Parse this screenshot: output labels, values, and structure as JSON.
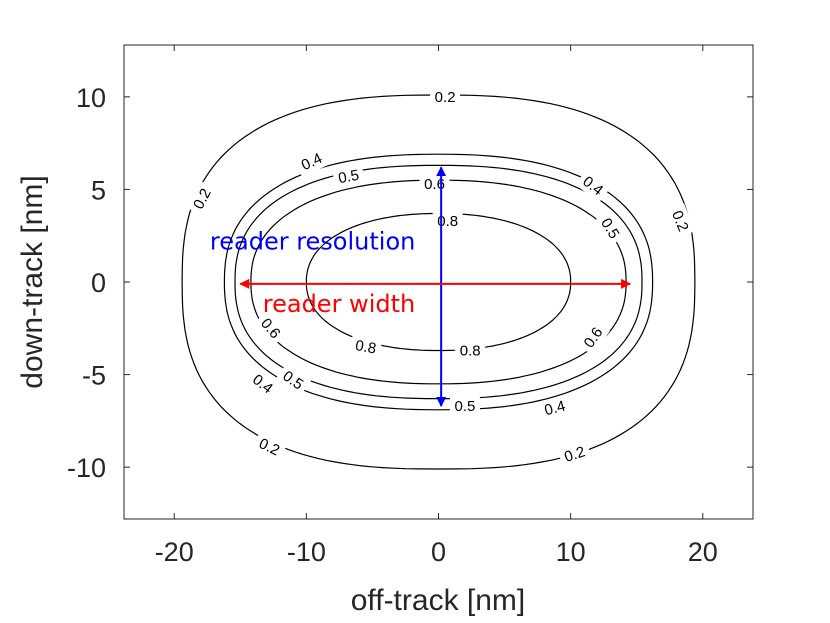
{
  "chart_data": {
    "type": "contour",
    "xlabel": "off-track [nm]",
    "ylabel": "down-track [nm]",
    "xlim": [
      -23.8,
      23.8
    ],
    "ylim": [
      -12.8,
      12.8
    ],
    "xticks": [
      -20,
      -10,
      0,
      10,
      20
    ],
    "xtick_labels": [
      "-20",
      "-10",
      "0",
      "10",
      "20"
    ],
    "yticks": [
      10,
      5,
      0,
      -5,
      -10
    ],
    "ytick_labels": [
      "10",
      "5",
      "0",
      "-5",
      "-10"
    ],
    "grid": false,
    "contours": [
      {
        "level": 0.2,
        "label": "0.2",
        "a": 19.4,
        "b": 10.1,
        "n": 2.6
      },
      {
        "level": 0.4,
        "label": "0.4",
        "a": 16.2,
        "b": 6.9,
        "n": 2.4
      },
      {
        "level": 0.5,
        "label": "0.5",
        "a": 15.4,
        "b": 6.3,
        "n": 2.4
      },
      {
        "level": 0.6,
        "label": "0.6",
        "a": 14.2,
        "b": 5.5,
        "n": 2.3
      },
      {
        "level": 0.8,
        "label": "0.8",
        "a": 10.0,
        "b": 3.7,
        "n": 2.2
      }
    ],
    "contour_labels": [
      {
        "text": "0.2",
        "x": 0.5,
        "y": 10.0,
        "rot": 0
      },
      {
        "text": "0.2",
        "x": -17.9,
        "y": 4.5,
        "rot": -62
      },
      {
        "text": "0.2",
        "x": 18.3,
        "y": 3.3,
        "rot": 68
      },
      {
        "text": "0.2",
        "x": -12.8,
        "y": -8.9,
        "rot": 25
      },
      {
        "text": "0.2",
        "x": 10.3,
        "y": -9.3,
        "rot": -18
      },
      {
        "text": "0.4",
        "x": -9.6,
        "y": 6.5,
        "rot": -25
      },
      {
        "text": "0.4",
        "x": 11.7,
        "y": 5.2,
        "rot": 38
      },
      {
        "text": "0.4",
        "x": -13.3,
        "y": -5.5,
        "rot": 38
      },
      {
        "text": "0.4",
        "x": 8.8,
        "y": -6.8,
        "rot": -15
      },
      {
        "text": "0.5",
        "x": -6.8,
        "y": 5.7,
        "rot": -10
      },
      {
        "text": "0.5",
        "x": 13.0,
        "y": 2.9,
        "rot": 58
      },
      {
        "text": "0.5",
        "x": -11.0,
        "y": -5.3,
        "rot": 35
      },
      {
        "text": "0.5",
        "x": 2.0,
        "y": -6.7,
        "rot": 0
      },
      {
        "text": "0.6",
        "x": -0.3,
        "y": 5.3,
        "rot": 0
      },
      {
        "text": "0.6",
        "x": -12.7,
        "y": -2.5,
        "rot": 50
      },
      {
        "text": "0.6",
        "x": 11.7,
        "y": -3.0,
        "rot": -55
      },
      {
        "text": "0.8",
        "x": 0.7,
        "y": 3.3,
        "rot": 0
      },
      {
        "text": "0.8",
        "x": -5.5,
        "y": -3.5,
        "rot": 10
      },
      {
        "text": "0.8",
        "x": 2.4,
        "y": -3.7,
        "rot": 0
      }
    ],
    "annotations": [
      {
        "text": "reader resolution",
        "color": "#0000ff",
        "x": -17.3,
        "y": 2.2,
        "arrow": {
          "x1": 0.2,
          "y1": 6.2,
          "x2": 0.2,
          "y2": -6.7
        }
      },
      {
        "text": "reader width",
        "color": "#ff0000",
        "x": -13.3,
        "y": -1.2,
        "arrow": {
          "x1": -15.0,
          "y1": -0.1,
          "x2": 14.5,
          "y2": -0.1
        }
      }
    ]
  }
}
